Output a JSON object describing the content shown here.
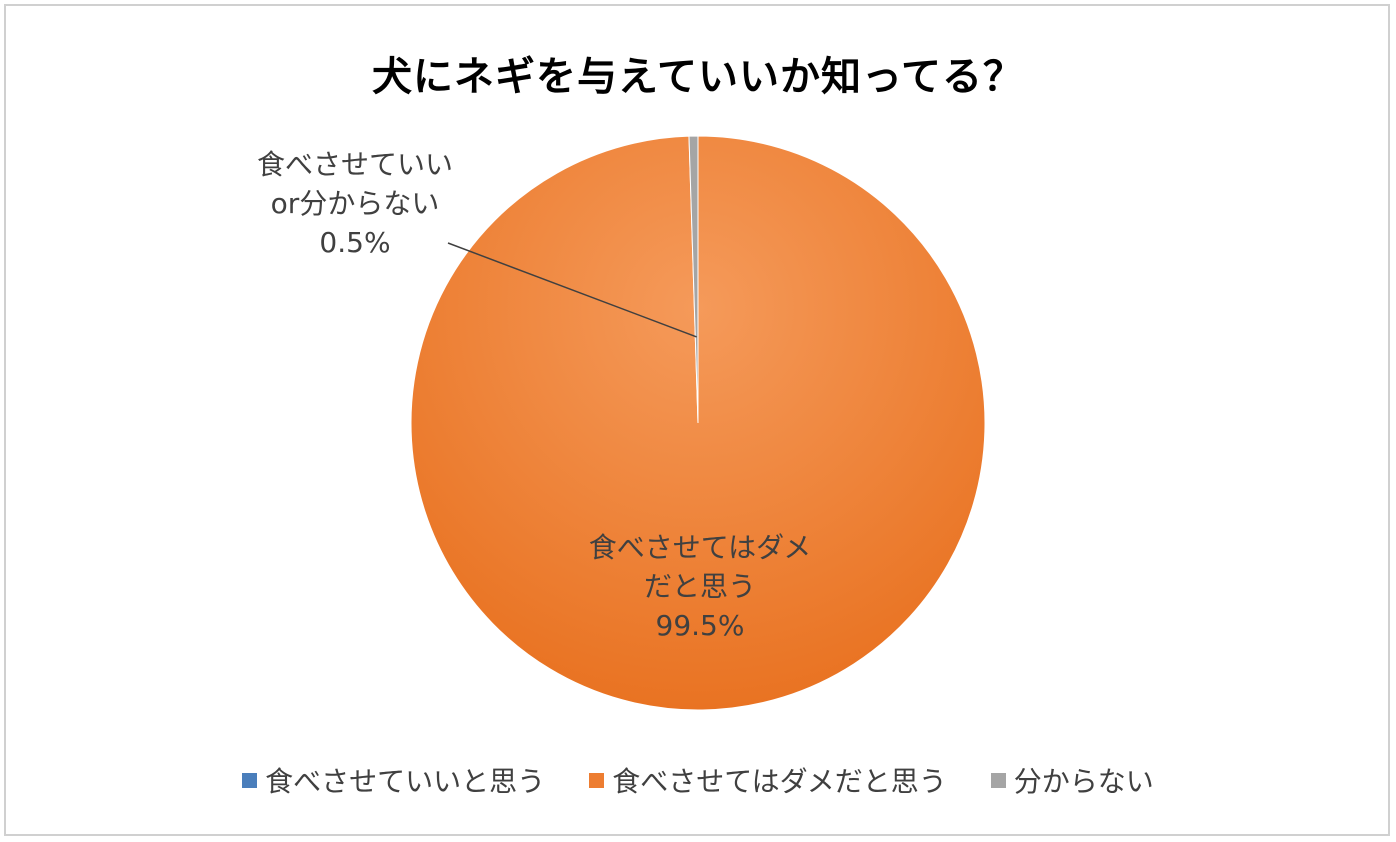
{
  "chart_data": {
    "type": "pie",
    "title": "犬にネギを与えていいか知ってる？",
    "categories": [
      "食べさせていいと思う",
      "食べさせてはダメだと思う",
      "分からない"
    ],
    "values": [
      0,
      99.5,
      0.5
    ],
    "colors": [
      "#4a7ebb",
      "#ed7d31",
      "#a5a5a5"
    ],
    "legend_position": "bottom",
    "data_labels": {
      "outside": {
        "line1": "食べさせていい",
        "line2": "or分からない",
        "percent": "0.5%"
      },
      "inside": {
        "line1": "食べさせてはダメ",
        "line2": "だと思う",
        "percent": "99.5%"
      }
    }
  }
}
